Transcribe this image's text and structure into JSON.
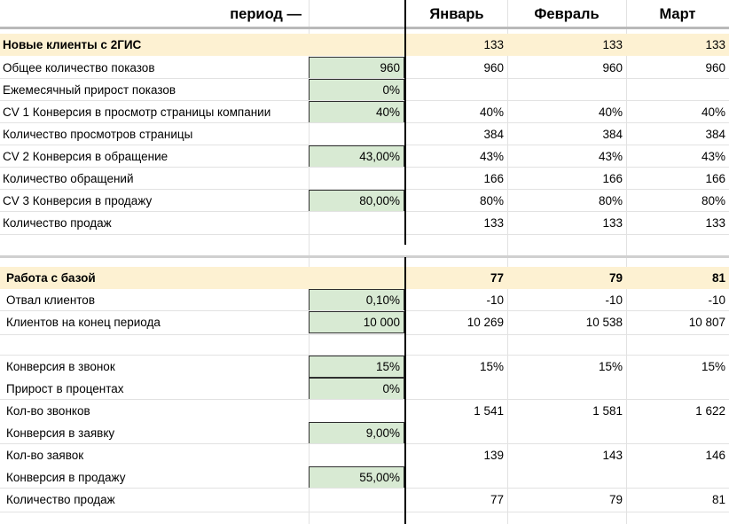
{
  "header": {
    "period_label": "период —",
    "months": [
      "Январь",
      "Февраль",
      "Март"
    ]
  },
  "section1": {
    "title": "Новые клиенты с 2ГИС",
    "title_values": [
      "133",
      "133",
      "133"
    ],
    "rows": [
      {
        "label": "Общее количество показов",
        "input": "960",
        "values": [
          "960",
          "960",
          "960"
        ]
      },
      {
        "label": "Ежемесячный прирост показов",
        "input": "0%",
        "values": [
          "",
          "",
          ""
        ]
      },
      {
        "label": "CV 1 Конверсия в просмотр страницы компании",
        "input": "40%",
        "values": [
          "40%",
          "40%",
          "40%"
        ]
      },
      {
        "label": "Количество просмотров страницы",
        "input": "",
        "values": [
          "384",
          "384",
          "384"
        ]
      },
      {
        "label": "CV 2 Конверсия в обращение",
        "input": "43,00%",
        "values": [
          "43%",
          "43%",
          "43%"
        ]
      },
      {
        "label": "Количество обращений",
        "input": "",
        "values": [
          "166",
          "166",
          "166"
        ]
      },
      {
        "label": "CV 3 Конверсия в продажу",
        "input": "80,00%",
        "values": [
          "80%",
          "80%",
          "80%"
        ]
      },
      {
        "label": "Количество продаж",
        "input": "",
        "values": [
          "133",
          "133",
          "133"
        ]
      }
    ]
  },
  "section2": {
    "title": "Работа с базой",
    "title_values": [
      "77",
      "79",
      "81"
    ],
    "rows": [
      {
        "label": "Отвал клиентов",
        "input": "0,10%",
        "values": [
          "-10",
          "-10",
          "-10"
        ]
      },
      {
        "label": "Клиентов на конец периода",
        "input": "10 000",
        "values": [
          "10 269",
          "10 538",
          "10 807"
        ]
      }
    ],
    "rows2": [
      {
        "label": "Конверсия в звонок",
        "input": "15%",
        "values": [
          "15%",
          "15%",
          "15%"
        ]
      },
      {
        "label": "Прирост в процентах",
        "input": "0%",
        "values": [
          "",
          "",
          ""
        ]
      },
      {
        "label": "Кол-во звонков",
        "input": "",
        "values": [
          "1 541",
          "1 581",
          "1 622"
        ]
      },
      {
        "label": "Конверсия в заявку",
        "input": "9,00%",
        "values": [
          "",
          "",
          ""
        ]
      },
      {
        "label": "Кол-во заявок",
        "input": "",
        "values": [
          "139",
          "143",
          "146"
        ]
      },
      {
        "label": "Конверсия в продажу",
        "input": "55,00%",
        "values": [
          "",
          "",
          ""
        ]
      },
      {
        "label": "Количество продаж",
        "input": "",
        "values": [
          "77",
          "79",
          "81"
        ]
      }
    ]
  },
  "colors": {
    "section_bg": "#fdf1d2",
    "input_bg": "#d8ead3",
    "header_rule": "#b9b9b9"
  }
}
